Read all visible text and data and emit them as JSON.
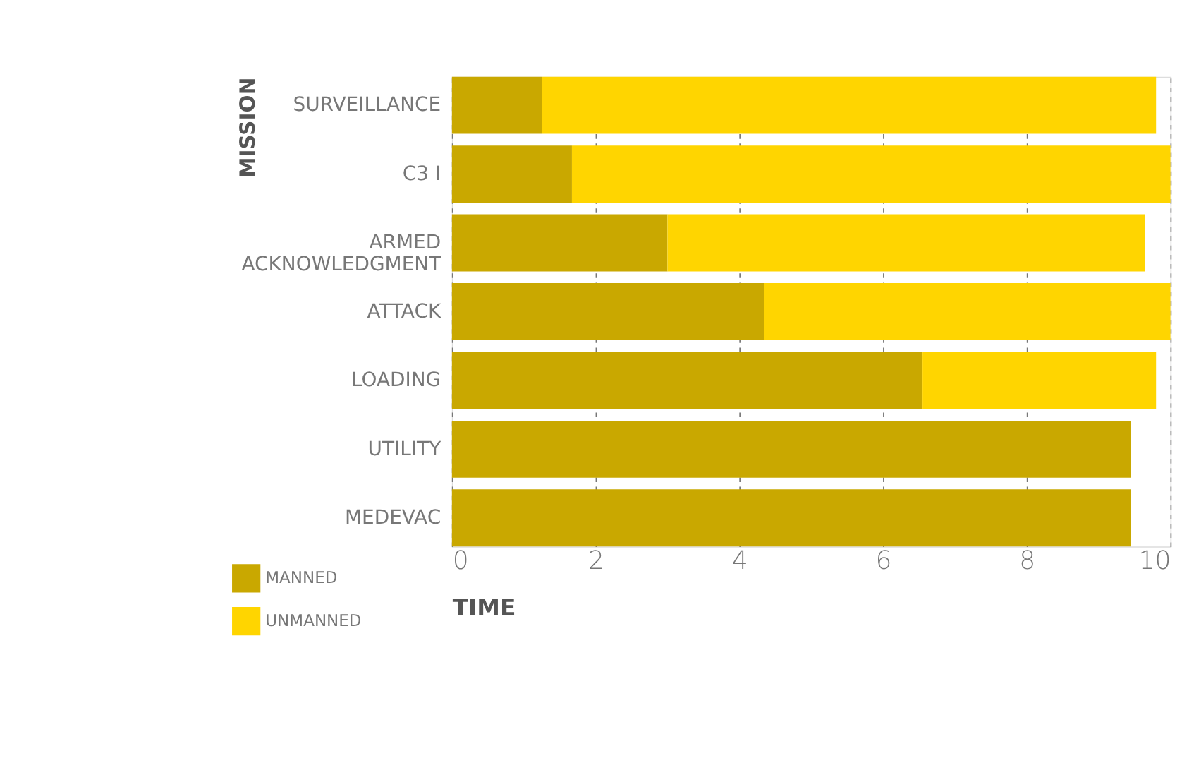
{
  "chart_data": {
    "type": "bar",
    "orientation": "horizontal",
    "stacked": true,
    "xlabel": "TIME",
    "ylabel": "MISSION",
    "categories": [
      "SURVEILLANCE",
      "C3 I",
      "ARMED ACKNOWLEDGMENT",
      "ATTACK",
      "LOADING",
      "UTILITY",
      "MEDEVAC"
    ],
    "series": [
      {
        "name": "MANNED",
        "color": "#c9a800",
        "values": [
          1.25,
          1.67,
          3.0,
          4.35,
          6.55,
          9.45,
          9.45
        ]
      },
      {
        "name": "UNMANNED",
        "color": "#ffd500",
        "values": [
          8.55,
          8.33,
          6.65,
          5.65,
          3.25,
          0,
          0
        ]
      }
    ],
    "xlim": [
      0,
      10
    ],
    "xticks": [
      0,
      2,
      4,
      6,
      8,
      10
    ],
    "grid": "x",
    "legend": "bottom left"
  }
}
